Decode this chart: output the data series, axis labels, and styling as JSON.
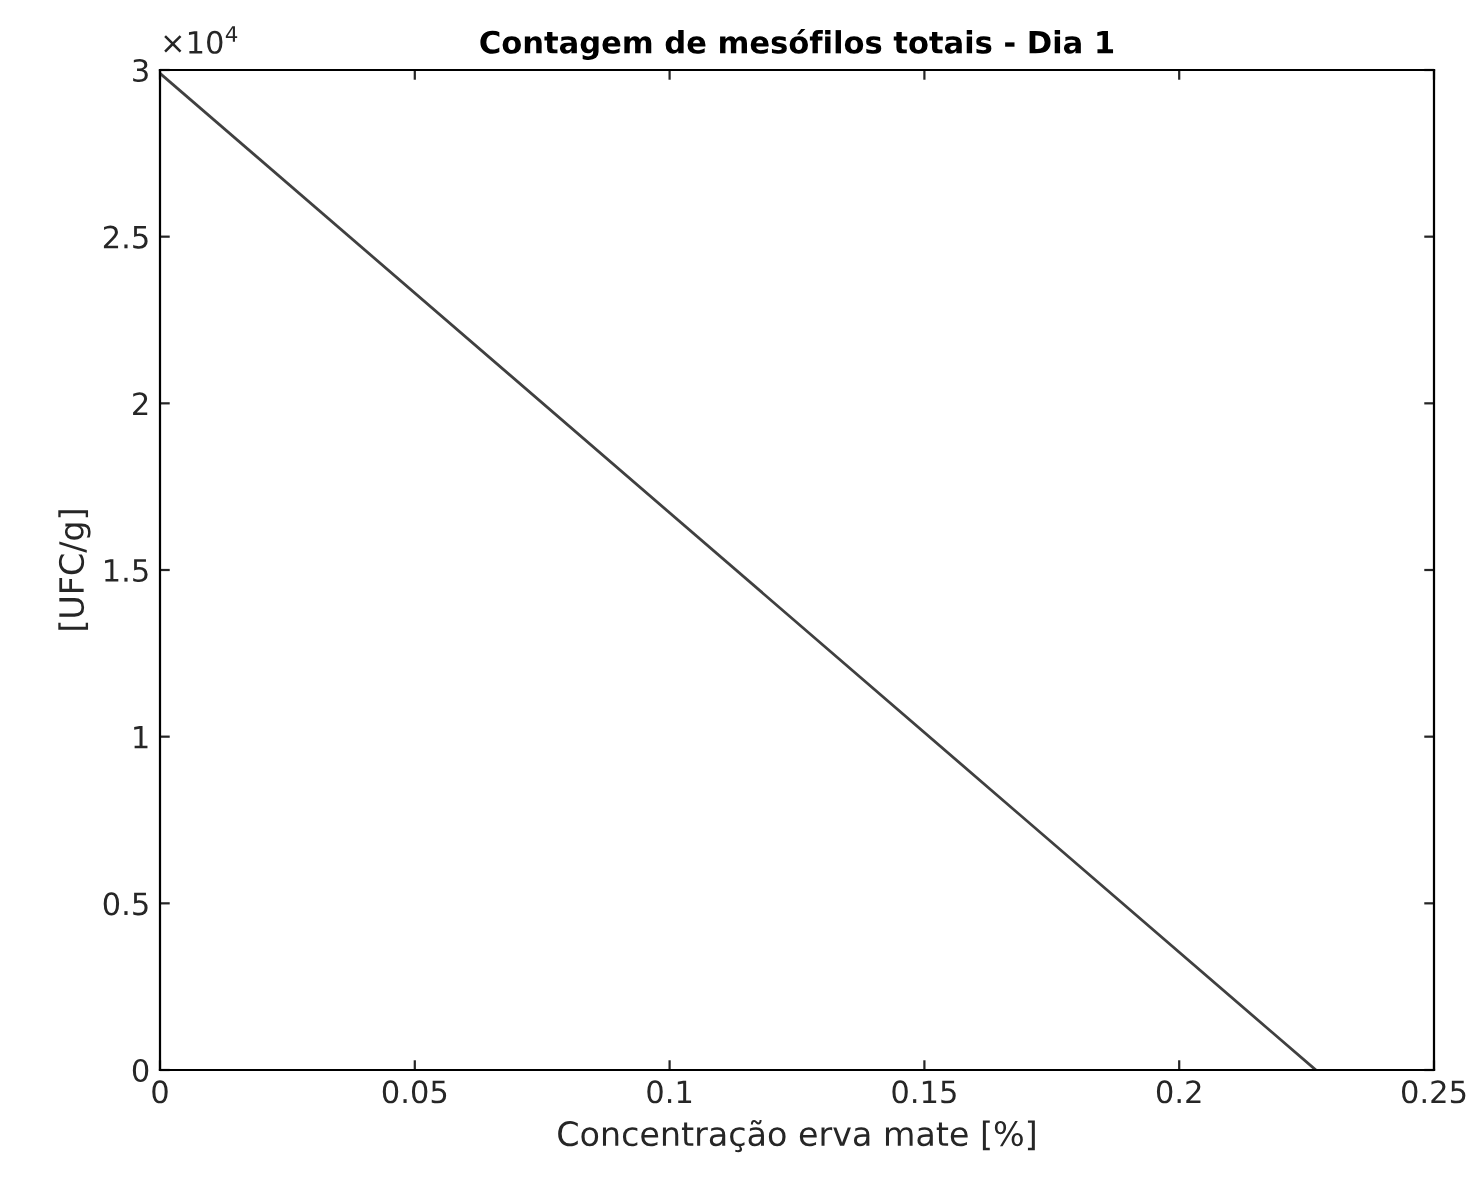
{
  "chart_data": {
    "type": "line",
    "title": "Contagem de mesófilos totais - Dia 1",
    "xlabel": "Concentração erva mate [%]",
    "ylabel": "[UFC/g]",
    "x": [
      0,
      0.2268
    ],
    "series": [
      {
        "color": "#404040",
        "values": [
          2.99,
          0
        ]
      }
    ],
    "xlim": [
      0,
      0.25
    ],
    "xticks": [
      0,
      0.05,
      0.1,
      0.15,
      0.2,
      0.25
    ],
    "ylim": [
      0,
      3
    ],
    "yticks": [
      0,
      0.5,
      1,
      1.5,
      2,
      2.5,
      3
    ],
    "annotations": [
      "×10$^{4}$"
    ],
    "grid": false,
    "legend": false
  }
}
